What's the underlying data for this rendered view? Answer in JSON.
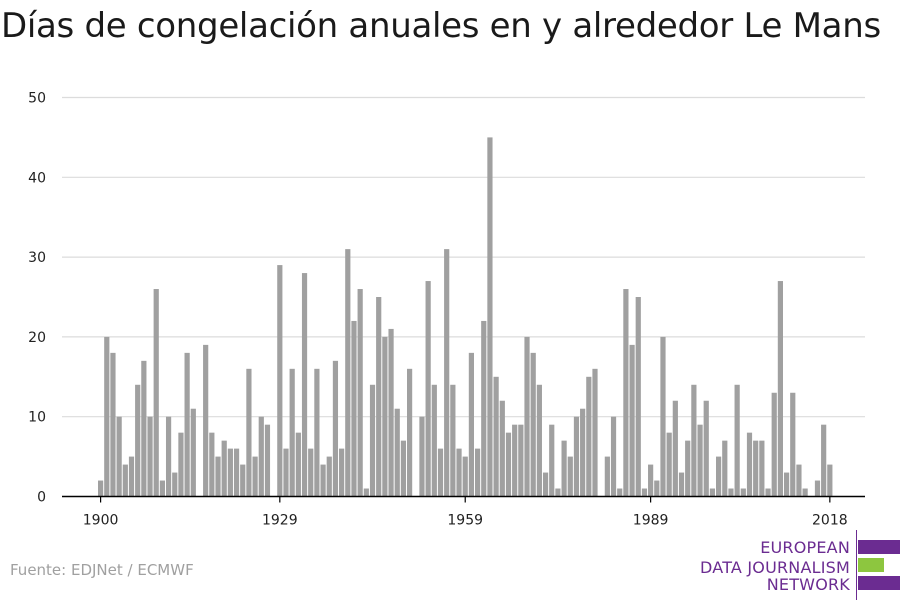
{
  "title": "Días de congelación anuales en y alrededor Le Mans",
  "source": "Fuente: EDJNet / ECMWF",
  "logo": {
    "lines": [
      "EUROPEAN",
      "DATA JOURNALISM",
      "NETWORK"
    ],
    "text_color": "#6b2c91",
    "bar_colors": [
      "#6b2c91",
      "#8dc63f",
      "#6b2c91"
    ],
    "icon": "edjnet-logo-bars"
  },
  "colors": {
    "bar": "#a0a0a0",
    "grid": "#dcdcdc",
    "axis": "#000000"
  },
  "chart_data": {
    "type": "bar",
    "title": "Días de congelación anuales en y alrededor Le Mans",
    "xlabel": "",
    "ylabel": "",
    "ylim": [
      0,
      50
    ],
    "yticks": [
      0,
      10,
      20,
      30,
      40,
      50
    ],
    "xticks": [
      1900,
      1929,
      1959,
      1989,
      2018
    ],
    "grid": true,
    "legend": "none",
    "categories": [
      1900,
      1901,
      1902,
      1903,
      1904,
      1905,
      1906,
      1907,
      1908,
      1909,
      1910,
      1911,
      1912,
      1913,
      1914,
      1915,
      1916,
      1917,
      1918,
      1919,
      1920,
      1921,
      1922,
      1923,
      1924,
      1925,
      1926,
      1927,
      1928,
      1929,
      1930,
      1931,
      1932,
      1933,
      1934,
      1935,
      1936,
      1937,
      1938,
      1939,
      1940,
      1941,
      1942,
      1943,
      1944,
      1945,
      1946,
      1947,
      1948,
      1949,
      1950,
      1951,
      1952,
      1953,
      1954,
      1955,
      1956,
      1957,
      1958,
      1959,
      1960,
      1961,
      1962,
      1963,
      1964,
      1965,
      1966,
      1967,
      1968,
      1969,
      1970,
      1971,
      1972,
      1973,
      1974,
      1975,
      1976,
      1977,
      1978,
      1979,
      1980,
      1981,
      1982,
      1983,
      1984,
      1985,
      1986,
      1987,
      1988,
      1989,
      1990,
      1991,
      1992,
      1993,
      1994,
      1995,
      1996,
      1997,
      1998,
      1999,
      2000,
      2001,
      2002,
      2003,
      2004,
      2005,
      2006,
      2007,
      2008,
      2009,
      2010,
      2011,
      2012,
      2013,
      2014,
      2015,
      2016,
      2017,
      2018
    ],
    "values": [
      2,
      20,
      18,
      10,
      4,
      5,
      14,
      17,
      10,
      26,
      2,
      10,
      3,
      8,
      18,
      11,
      0,
      19,
      8,
      5,
      7,
      6,
      6,
      4,
      16,
      5,
      10,
      9,
      0,
      29,
      6,
      16,
      8,
      28,
      6,
      16,
      4,
      5,
      17,
      6,
      31,
      22,
      26,
      1,
      14,
      25,
      20,
      21,
      11,
      7,
      16,
      0,
      10,
      27,
      14,
      6,
      31,
      14,
      6,
      5,
      18,
      6,
      22,
      45,
      15,
      12,
      8,
      9,
      9,
      20,
      18,
      14,
      3,
      9,
      1,
      7,
      5,
      10,
      11,
      15,
      16,
      0,
      5,
      10,
      1,
      26,
      19,
      25,
      1,
      4,
      2,
      20,
      8,
      12,
      3,
      7,
      14,
      9,
      12,
      1,
      5,
      7,
      1,
      14,
      1,
      8,
      7,
      7,
      1,
      13,
      27,
      3,
      13,
      4,
      1,
      0,
      2,
      9,
      4
    ]
  }
}
